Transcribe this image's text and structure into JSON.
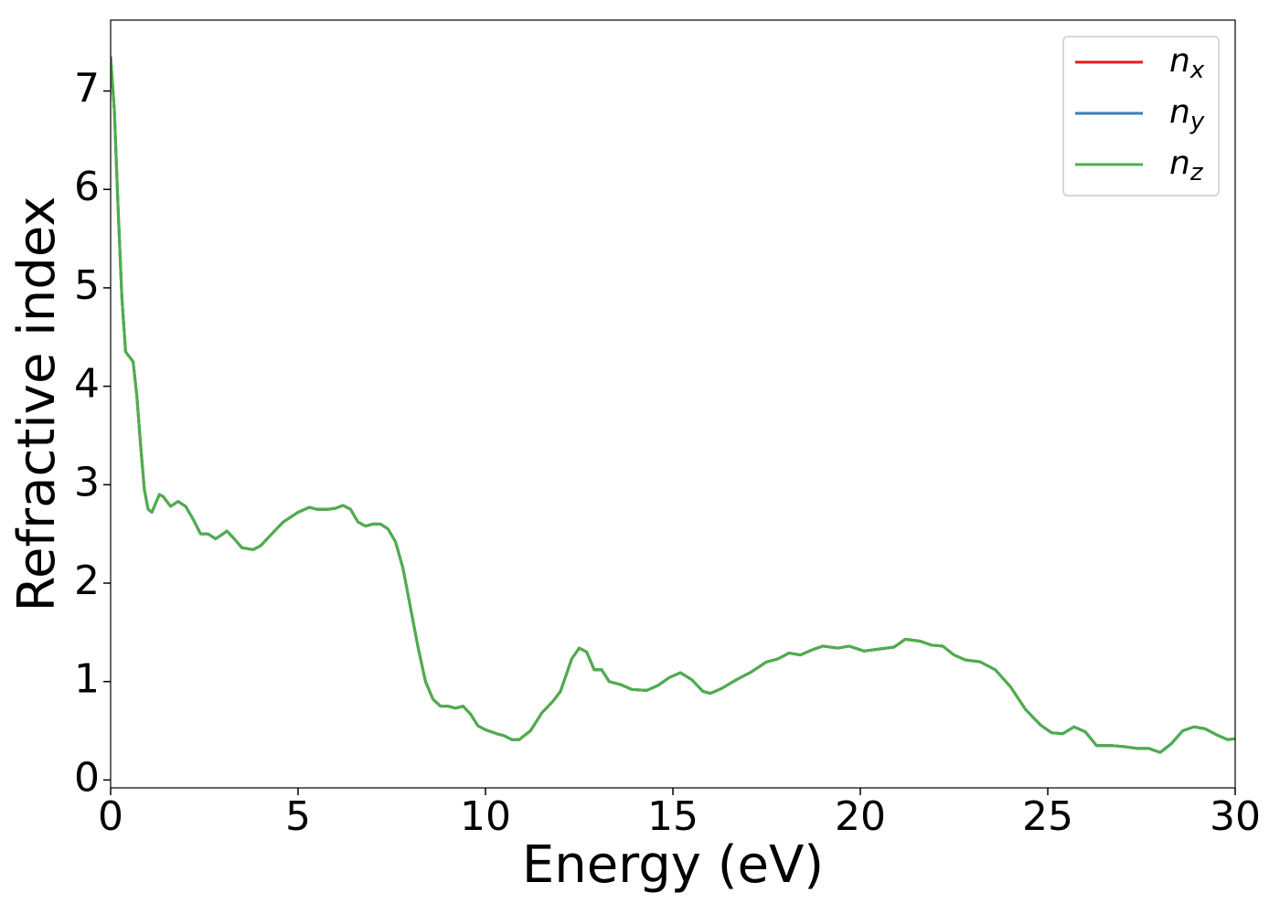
{
  "chart_data": {
    "type": "line",
    "x_label": "Energy (eV)",
    "y_label": "Refractive index",
    "x": [
      0,
      0.1,
      0.2,
      0.3,
      0.4,
      0.5,
      0.6,
      0.7,
      0.8,
      0.9,
      1.0,
      1.1,
      1.3,
      1.4,
      1.6,
      1.8,
      2.0,
      2.2,
      2.4,
      2.6,
      2.8,
      3.0,
      3.1,
      3.3,
      3.5,
      3.8,
      4.0,
      4.3,
      4.6,
      5.0,
      5.3,
      5.5,
      5.8,
      6.0,
      6.2,
      6.4,
      6.6,
      6.8,
      7.0,
      7.2,
      7.4,
      7.6,
      7.8,
      8.0,
      8.2,
      8.4,
      8.6,
      8.8,
      9.0,
      9.2,
      9.4,
      9.6,
      9.8,
      10.0,
      10.3,
      10.5,
      10.7,
      10.9,
      11.2,
      11.5,
      11.8,
      12.0,
      12.3,
      12.5,
      12.7,
      12.9,
      13.1,
      13.3,
      13.6,
      13.9,
      14.3,
      14.6,
      14.9,
      15.2,
      15.5,
      15.8,
      16.0,
      16.3,
      16.7,
      17.1,
      17.5,
      17.8,
      18.1,
      18.4,
      18.7,
      19.0,
      19.4,
      19.7,
      20.1,
      20.5,
      20.9,
      21.2,
      21.6,
      21.9,
      22.2,
      22.5,
      22.8,
      23.2,
      23.6,
      24.0,
      24.4,
      24.8,
      25.1,
      25.4,
      25.7,
      26.0,
      26.3,
      26.7,
      27.0,
      27.4,
      27.7,
      28.0,
      28.3,
      28.6,
      28.9,
      29.2,
      29.5,
      29.8,
      30.0
    ],
    "series": [
      {
        "name": "nx",
        "color": "#e41a1c",
        "values": [
          7.35,
          6.8,
          5.8,
          4.9,
          4.35,
          4.3,
          4.25,
          3.9,
          3.4,
          2.95,
          2.75,
          2.72,
          2.9,
          2.88,
          2.78,
          2.83,
          2.78,
          2.65,
          2.5,
          2.5,
          2.45,
          2.5,
          2.53,
          2.45,
          2.36,
          2.34,
          2.38,
          2.5,
          2.62,
          2.72,
          2.77,
          2.75,
          2.75,
          2.76,
          2.79,
          2.75,
          2.62,
          2.58,
          2.6,
          2.6,
          2.55,
          2.42,
          2.15,
          1.75,
          1.35,
          1.0,
          0.82,
          0.75,
          0.75,
          0.73,
          0.75,
          0.67,
          0.55,
          0.51,
          0.47,
          0.45,
          0.41,
          0.41,
          0.5,
          0.68,
          0.8,
          0.9,
          1.23,
          1.34,
          1.3,
          1.12,
          1.12,
          1.0,
          0.97,
          0.92,
          0.91,
          0.96,
          1.04,
          1.09,
          1.02,
          0.9,
          0.88,
          0.93,
          1.02,
          1.1,
          1.2,
          1.23,
          1.29,
          1.27,
          1.32,
          1.36,
          1.34,
          1.36,
          1.31,
          1.33,
          1.35,
          1.43,
          1.41,
          1.37,
          1.36,
          1.27,
          1.22,
          1.2,
          1.12,
          0.95,
          0.72,
          0.56,
          0.48,
          0.47,
          0.54,
          0.49,
          0.35,
          0.35,
          0.34,
          0.32,
          0.32,
          0.28,
          0.37,
          0.5,
          0.54,
          0.52,
          0.46,
          0.41,
          0.42
        ]
      },
      {
        "name": "ny",
        "color": "#377eb8",
        "values": [
          7.35,
          6.8,
          5.8,
          4.9,
          4.35,
          4.3,
          4.25,
          3.9,
          3.4,
          2.95,
          2.75,
          2.72,
          2.9,
          2.88,
          2.78,
          2.83,
          2.78,
          2.65,
          2.5,
          2.5,
          2.45,
          2.5,
          2.53,
          2.45,
          2.36,
          2.34,
          2.38,
          2.5,
          2.62,
          2.72,
          2.77,
          2.75,
          2.75,
          2.76,
          2.79,
          2.75,
          2.62,
          2.58,
          2.6,
          2.6,
          2.55,
          2.42,
          2.15,
          1.75,
          1.35,
          1.0,
          0.82,
          0.75,
          0.75,
          0.73,
          0.75,
          0.67,
          0.55,
          0.51,
          0.47,
          0.45,
          0.41,
          0.41,
          0.5,
          0.68,
          0.8,
          0.9,
          1.23,
          1.34,
          1.3,
          1.12,
          1.12,
          1.0,
          0.97,
          0.92,
          0.91,
          0.96,
          1.04,
          1.09,
          1.02,
          0.9,
          0.88,
          0.93,
          1.02,
          1.1,
          1.2,
          1.23,
          1.29,
          1.27,
          1.32,
          1.36,
          1.34,
          1.36,
          1.31,
          1.33,
          1.35,
          1.43,
          1.41,
          1.37,
          1.36,
          1.27,
          1.22,
          1.2,
          1.12,
          0.95,
          0.72,
          0.56,
          0.48,
          0.47,
          0.54,
          0.49,
          0.35,
          0.35,
          0.34,
          0.32,
          0.32,
          0.28,
          0.37,
          0.5,
          0.54,
          0.52,
          0.46,
          0.41,
          0.42
        ]
      },
      {
        "name": "nz",
        "color": "#4daf4a",
        "values": [
          7.35,
          6.8,
          5.8,
          4.9,
          4.35,
          4.3,
          4.25,
          3.9,
          3.4,
          2.95,
          2.75,
          2.72,
          2.9,
          2.88,
          2.78,
          2.83,
          2.78,
          2.65,
          2.5,
          2.5,
          2.45,
          2.5,
          2.53,
          2.45,
          2.36,
          2.34,
          2.38,
          2.5,
          2.62,
          2.72,
          2.77,
          2.75,
          2.75,
          2.76,
          2.79,
          2.75,
          2.62,
          2.58,
          2.6,
          2.6,
          2.55,
          2.42,
          2.15,
          1.75,
          1.35,
          1.0,
          0.82,
          0.75,
          0.75,
          0.73,
          0.75,
          0.67,
          0.55,
          0.51,
          0.47,
          0.45,
          0.41,
          0.41,
          0.5,
          0.68,
          0.8,
          0.9,
          1.23,
          1.34,
          1.3,
          1.12,
          1.12,
          1.0,
          0.97,
          0.92,
          0.91,
          0.96,
          1.04,
          1.09,
          1.02,
          0.9,
          0.88,
          0.93,
          1.02,
          1.1,
          1.2,
          1.23,
          1.29,
          1.27,
          1.32,
          1.36,
          1.34,
          1.36,
          1.31,
          1.33,
          1.35,
          1.43,
          1.41,
          1.37,
          1.36,
          1.27,
          1.22,
          1.2,
          1.12,
          0.95,
          0.72,
          0.56,
          0.48,
          0.47,
          0.54,
          0.49,
          0.35,
          0.35,
          0.34,
          0.32,
          0.32,
          0.28,
          0.37,
          0.5,
          0.54,
          0.52,
          0.46,
          0.41,
          0.42
        ]
      }
    ],
    "xlim": [
      0,
      30
    ],
    "xticks": [
      0,
      5,
      10,
      15,
      20,
      25,
      30
    ],
    "ylim": [
      -0.08,
      7.72
    ],
    "yticks": [
      0,
      1,
      2,
      3,
      4,
      5,
      6,
      7
    ],
    "legend": "upper right"
  }
}
